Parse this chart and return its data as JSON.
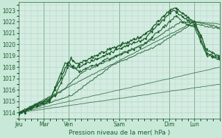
{
  "background_color": "#c8e8d8",
  "plot_bg_color": "#d4ece2",
  "grid_color": "#aaceba",
  "line_color": "#1a5c2a",
  "xlabel": "Pression niveau de la mer( hPa )",
  "ylim": [
    1013.5,
    1023.7
  ],
  "yticks": [
    1014,
    1015,
    1016,
    1017,
    1018,
    1019,
    1020,
    1021,
    1022,
    1023
  ],
  "day_labels": [
    "Jeu",
    "Mar",
    "Ven",
    "Sam",
    "Dim",
    "Lun"
  ],
  "day_positions": [
    0,
    24,
    48,
    96,
    144,
    168
  ],
  "xlim": [
    0,
    192
  ]
}
